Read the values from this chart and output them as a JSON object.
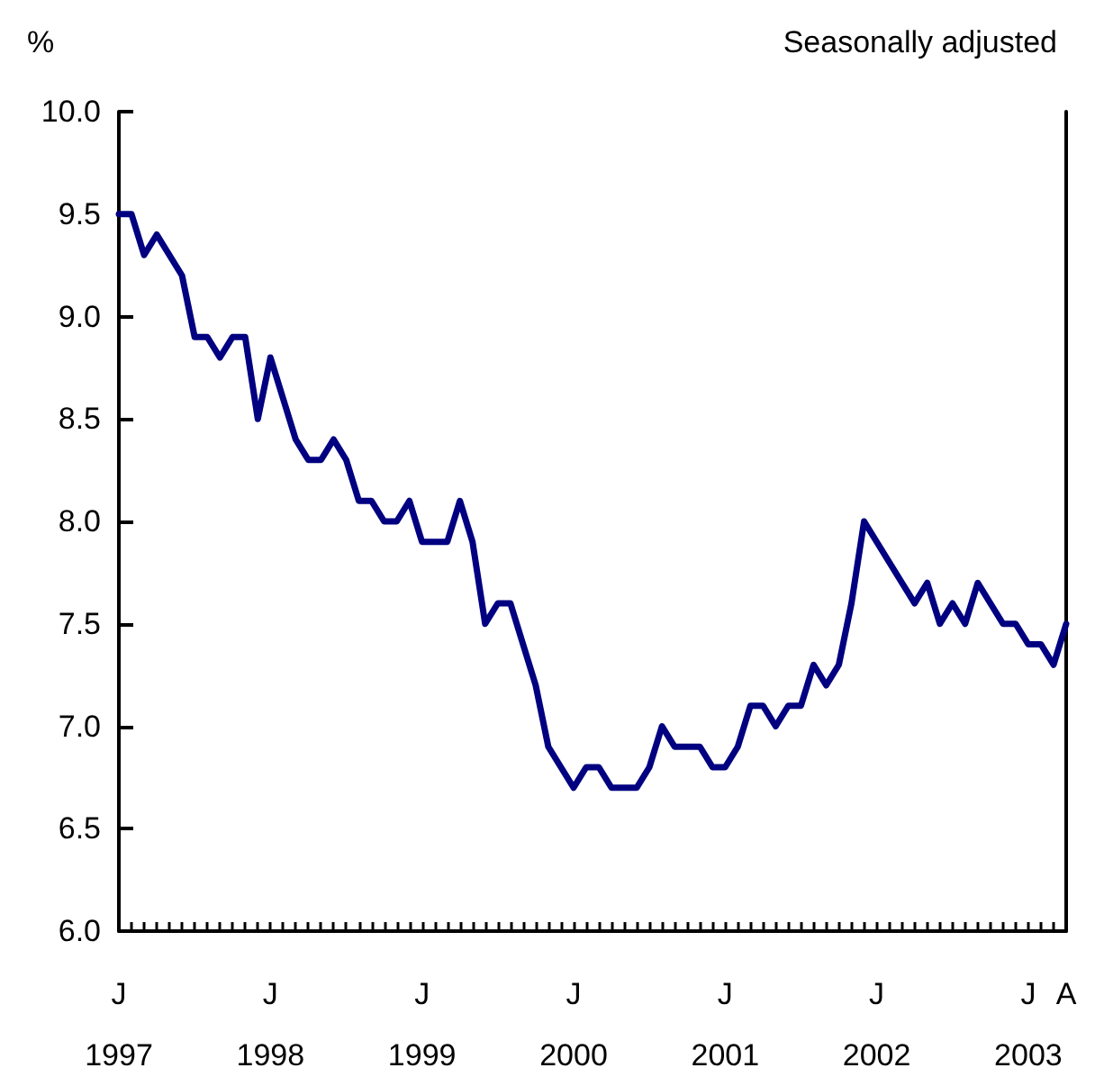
{
  "chart_data": {
    "type": "line",
    "subtitle": "Seasonally adjusted",
    "ylabel": "%",
    "categories": [
      "J\n1997",
      null,
      null,
      null,
      null,
      null,
      null,
      null,
      null,
      null,
      null,
      null,
      "J\n1998",
      null,
      null,
      null,
      null,
      null,
      null,
      null,
      null,
      null,
      null,
      null,
      "J\n1999",
      null,
      null,
      null,
      null,
      null,
      null,
      null,
      null,
      null,
      null,
      null,
      "J\n2000",
      null,
      null,
      null,
      null,
      null,
      null,
      null,
      null,
      null,
      null,
      null,
      "J\n2001",
      null,
      null,
      null,
      null,
      null,
      null,
      null,
      null,
      null,
      null,
      null,
      "J\n2002",
      null,
      null,
      null,
      null,
      null,
      null,
      null,
      null,
      null,
      null,
      null,
      "J\n2003",
      null,
      null,
      "A"
    ],
    "series": [
      {
        "color": "#000080",
        "values": [
          9.5,
          9.5,
          9.3,
          9.4,
          9.3,
          9.2,
          8.9,
          8.9,
          8.8,
          8.9,
          8.9,
          8.5,
          8.8,
          8.6,
          8.4,
          8.3,
          8.3,
          8.4,
          8.3,
          8.1,
          8.1,
          8.0,
          8.0,
          8.1,
          7.9,
          7.9,
          7.9,
          8.1,
          7.9,
          7.5,
          7.6,
          7.6,
          7.4,
          7.2,
          6.9,
          6.8,
          6.7,
          6.8,
          6.8,
          6.7,
          6.7,
          6.7,
          6.8,
          7.0,
          6.9,
          6.9,
          6.9,
          6.8,
          6.8,
          6.9,
          7.1,
          7.1,
          7.0,
          7.1,
          7.1,
          7.3,
          7.2,
          7.3,
          7.6,
          8.0,
          7.9,
          7.8,
          7.7,
          7.6,
          7.7,
          7.5,
          7.6,
          7.5,
          7.7,
          7.6,
          7.5,
          7.5,
          7.4,
          7.4,
          7.3,
          7.5
        ]
      }
    ],
    "ylim": [
      6,
      10
    ],
    "yticks": [
      {
        "value": 6,
        "label": "6.0"
      },
      {
        "value": 6.5,
        "label": "6.5"
      },
      {
        "value": 7,
        "label": "7.0"
      },
      {
        "value": 7.5,
        "label": "7.5"
      },
      {
        "value": 8,
        "label": "8.0"
      },
      {
        "value": 8.5,
        "label": "8.5"
      },
      {
        "value": 9,
        "label": "9.0"
      },
      {
        "value": 9.5,
        "label": "9.5"
      },
      {
        "value": 10,
        "label": "10.0"
      }
    ],
    "grid": false,
    "marker": "none",
    "line_style": "solid"
  }
}
